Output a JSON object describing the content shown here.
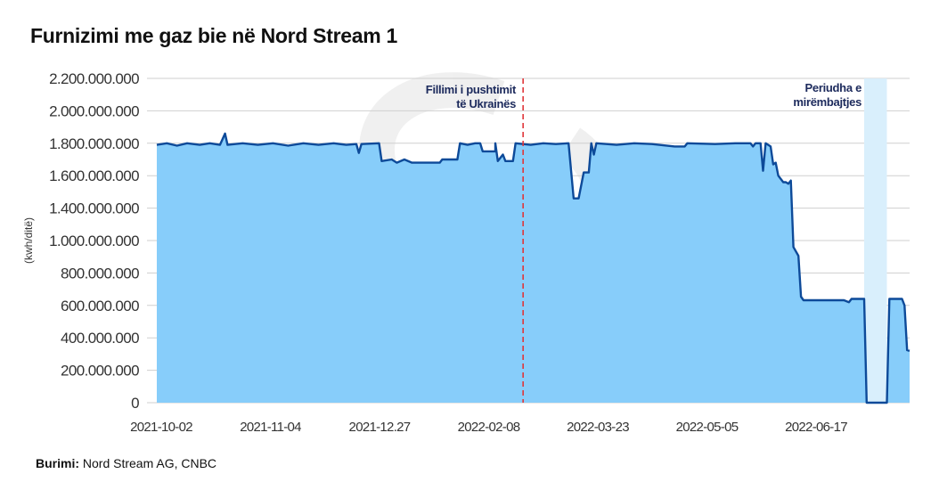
{
  "title": "Furnizimi me gaz bie në Nord Stream 1",
  "source": {
    "label": "Burimi:",
    "text": "Nord Stream AG, CNBC"
  },
  "chart_data": {
    "type": "area",
    "title": "Furnizimi me gaz bie në Nord Stream 1",
    "ylabel": "(kwh/ditë)",
    "xlabel": "",
    "x_domain": [
      "2021-10-01",
      "2022-07-26"
    ],
    "ytick_labels": [
      "0",
      "200.000.000",
      "400.000.000",
      "600.000.000",
      "800.000.000",
      "1.000.000.000",
      "1.400.000.000",
      "1.600.000.000",
      "1.800.000.000",
      "2.000.000.000",
      "2.200.000.000"
    ],
    "ytick_values": [
      0,
      200000000,
      400000000,
      600000000,
      800000000,
      1000000000,
      1400000000,
      1600000000,
      1800000000,
      2000000000,
      2200000000
    ],
    "xtick_labels": [
      "2021-10-02",
      "2021-11-04",
      "2021-12.27",
      "2022-02-08",
      "2022-03-23",
      "2022-05-05",
      "2022-06-17"
    ],
    "grid": true,
    "colors": {
      "fill": "#87cdfa",
      "line": "#0d4a99",
      "marker": "#e0363a",
      "band": "#d9effc",
      "grid": "#cfcfcf"
    },
    "annotations": [
      {
        "type": "vline",
        "date": "2022-02-23",
        "lines": [
          "Fillimi i pushtimit",
          "të Ukrainës"
        ]
      },
      {
        "type": "band",
        "start": "2022-07-08",
        "end": "2022-07-17",
        "lines": [
          "Periudha e",
          "mirëmbajtjes"
        ]
      }
    ],
    "points": [
      [
        "2021-10-01",
        1790000000
      ],
      [
        "2021-10-05",
        1800000000
      ],
      [
        "2021-10-09",
        1785000000
      ],
      [
        "2021-10-13",
        1800000000
      ],
      [
        "2021-10-18",
        1790000000
      ],
      [
        "2021-10-22",
        1800000000
      ],
      [
        "2021-10-26",
        1790000000
      ],
      [
        "2021-10-28",
        1860000000
      ],
      [
        "2021-10-29",
        1790000000
      ],
      [
        "2021-11-04",
        1800000000
      ],
      [
        "2021-11-10",
        1790000000
      ],
      [
        "2021-11-16",
        1800000000
      ],
      [
        "2021-11-22",
        1785000000
      ],
      [
        "2021-11-28",
        1800000000
      ],
      [
        "2021-12-04",
        1790000000
      ],
      [
        "2021-12-10",
        1800000000
      ],
      [
        "2021-12-15",
        1790000000
      ],
      [
        "2021-12-19",
        1795000000
      ],
      [
        "2021-12-20",
        1740000000
      ],
      [
        "2021-12-21",
        1795000000
      ],
      [
        "2021-12-28",
        1800000000
      ],
      [
        "2021-12-29",
        1690000000
      ],
      [
        "2022-01-02",
        1700000000
      ],
      [
        "2022-01-04",
        1680000000
      ],
      [
        "2022-01-07",
        1700000000
      ],
      [
        "2022-01-10",
        1680000000
      ],
      [
        "2022-01-21",
        1680000000
      ],
      [
        "2022-01-22",
        1700000000
      ],
      [
        "2022-01-28",
        1700000000
      ],
      [
        "2022-01-29",
        1800000000
      ],
      [
        "2022-02-01",
        1790000000
      ],
      [
        "2022-02-04",
        1800000000
      ],
      [
        "2022-02-06",
        1800000000
      ],
      [
        "2022-02-07",
        1750000000
      ],
      [
        "2022-02-12",
        1750000000
      ],
      [
        "2022-02-12",
        1800000000
      ],
      [
        "2022-02-13",
        1690000000
      ],
      [
        "2022-02-15",
        1730000000
      ],
      [
        "2022-02-16",
        1690000000
      ],
      [
        "2022-02-19",
        1690000000
      ],
      [
        "2022-02-20",
        1800000000
      ],
      [
        "2022-02-26",
        1790000000
      ],
      [
        "2022-03-03",
        1800000000
      ],
      [
        "2022-03-08",
        1795000000
      ],
      [
        "2022-03-13",
        1800000000
      ],
      [
        "2022-03-15",
        1460000000
      ],
      [
        "2022-03-17",
        1460000000
      ],
      [
        "2022-03-19",
        1620000000
      ],
      [
        "2022-03-21",
        1620000000
      ],
      [
        "2022-03-22",
        1800000000
      ],
      [
        "2022-03-23",
        1730000000
      ],
      [
        "2022-03-24",
        1800000000
      ],
      [
        "2022-04-01",
        1790000000
      ],
      [
        "2022-04-08",
        1800000000
      ],
      [
        "2022-04-15",
        1795000000
      ],
      [
        "2022-04-24",
        1780000000
      ],
      [
        "2022-04-28",
        1780000000
      ],
      [
        "2022-04-29",
        1800000000
      ],
      [
        "2022-05-10",
        1795000000
      ],
      [
        "2022-05-18",
        1800000000
      ],
      [
        "2022-05-24",
        1800000000
      ],
      [
        "2022-05-25",
        1780000000
      ],
      [
        "2022-05-26",
        1800000000
      ],
      [
        "2022-05-28",
        1800000000
      ],
      [
        "2022-05-29",
        1630000000
      ],
      [
        "2022-05-30",
        1800000000
      ],
      [
        "2022-06-01",
        1780000000
      ],
      [
        "2022-06-02",
        1670000000
      ],
      [
        "2022-06-03",
        1680000000
      ],
      [
        "2022-06-04",
        1600000000
      ],
      [
        "2022-06-06",
        1560000000
      ],
      [
        "2022-06-07",
        1560000000
      ],
      [
        "2022-06-08",
        1550000000
      ],
      [
        "2022-06-09",
        1570000000
      ],
      [
        "2022-06-10",
        960000000
      ],
      [
        "2022-06-12",
        906000000
      ],
      [
        "2022-06-13",
        654000000
      ],
      [
        "2022-06-14",
        632000000
      ],
      [
        "2022-06-30",
        632000000
      ],
      [
        "2022-07-02",
        620000000
      ],
      [
        "2022-07-03",
        640000000
      ],
      [
        "2022-07-08",
        640000000
      ],
      [
        "2022-07-09",
        0
      ],
      [
        "2022-07-17",
        0
      ],
      [
        "2022-07-18",
        640000000
      ],
      [
        "2022-07-23",
        640000000
      ],
      [
        "2022-07-24",
        600000000
      ],
      [
        "2022-07-25",
        324000000
      ],
      [
        "2022-07-26",
        320000000
      ]
    ]
  }
}
